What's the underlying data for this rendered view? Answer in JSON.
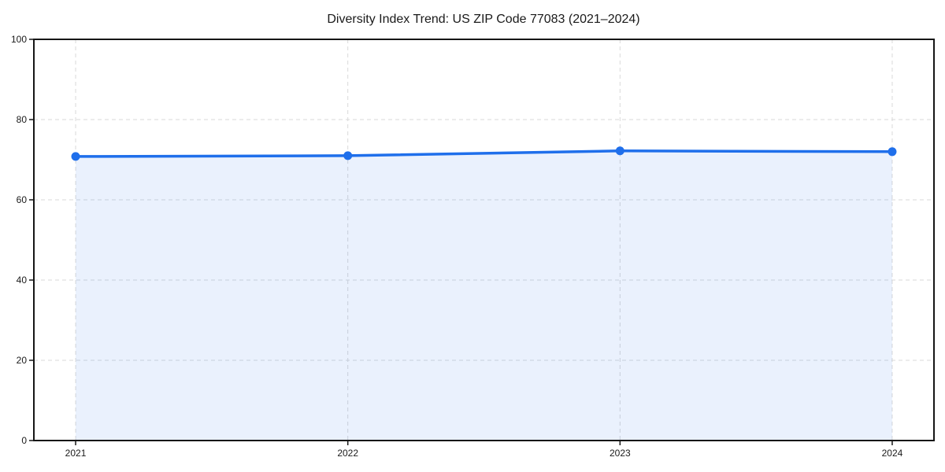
{
  "chart_data": {
    "type": "line",
    "title": "Diversity Index Trend: US ZIP Code 77083 (2021–2024)",
    "categories": [
      "2021",
      "2022",
      "2023",
      "2024"
    ],
    "series": [
      {
        "name": "Diversity Index",
        "values": [
          70.8,
          71.0,
          72.2,
          72.0
        ]
      }
    ],
    "xlabel": "",
    "ylabel": "",
    "ylim": [
      0,
      100
    ],
    "yticks": [
      0,
      20,
      40,
      60,
      80,
      100
    ],
    "grid": true,
    "grid_style": "dashed",
    "legend": false,
    "area_fill": true,
    "colors": {
      "line": "#1f6feb",
      "marker": "#1f6feb",
      "area": "rgba(31, 111, 235, 0.095)",
      "grid": "#d9d9d9",
      "axis": "#161616",
      "text": "#1a1a1a",
      "background": "#ffffff"
    }
  }
}
